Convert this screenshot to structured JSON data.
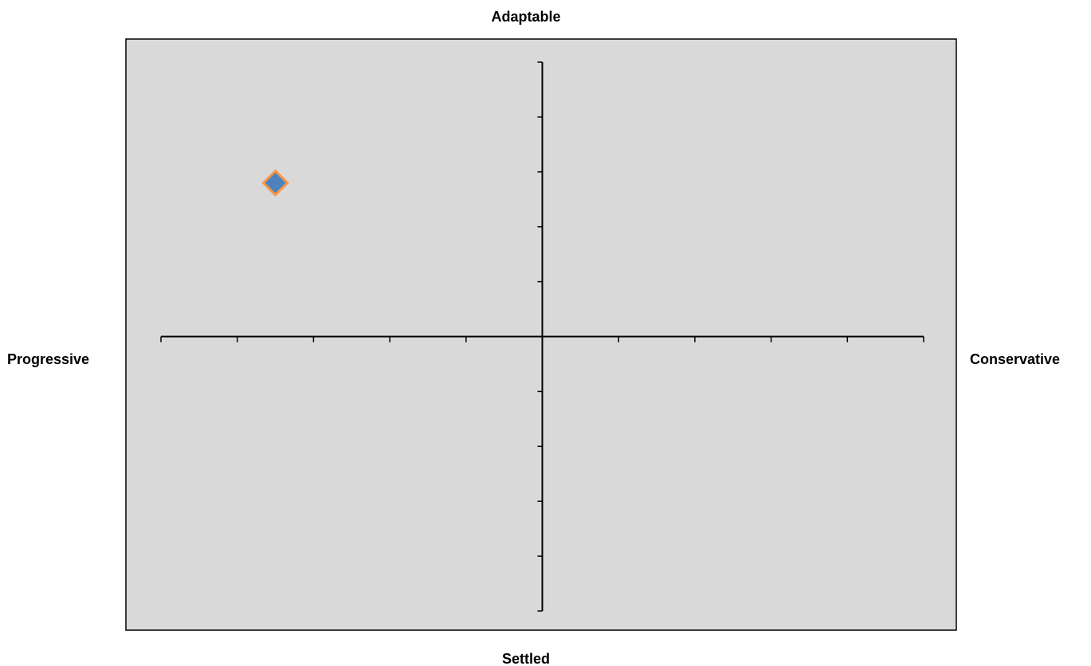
{
  "chart_data": {
    "type": "scatter",
    "title": "",
    "axis_titles": {
      "top": "Adaptable",
      "bottom": "Settled",
      "left": "Progressive",
      "right": "Conservative"
    },
    "xlim": [
      -5,
      5
    ],
    "ylim": [
      -5,
      5
    ],
    "x_tick_step": 1,
    "y_tick_step": 1,
    "tick_labels_shown": false,
    "grid": false,
    "legend": "none",
    "series": [
      {
        "points": [
          {
            "x": -3.5,
            "y": 2.8
          }
        ],
        "marker": "diamond"
      }
    ],
    "colors": {
      "plot_background": "#d9d9d9",
      "plot_border": "#000000",
      "axis_line": "#000000",
      "marker_fill": "#4f81bd",
      "marker_edge": "#f79646"
    }
  }
}
